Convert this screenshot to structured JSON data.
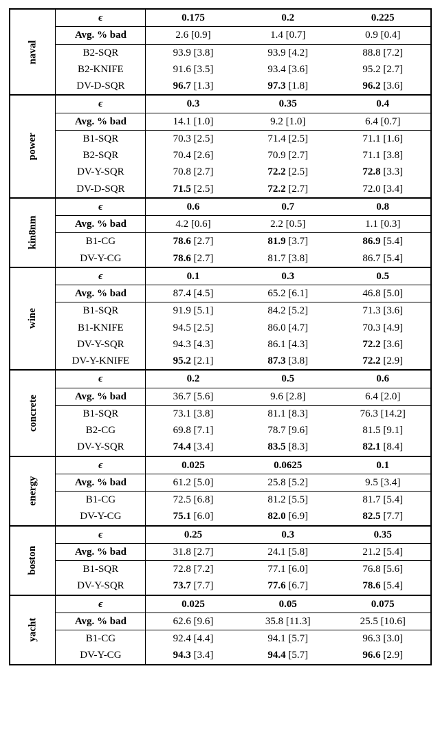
{
  "sections": [
    {
      "dataset": "naval",
      "eps": [
        "0.175",
        "0.2",
        "0.225"
      ],
      "avg_bad": [
        "2.6 [0.9]",
        "1.4 [0.7]",
        "0.9 [0.4]"
      ],
      "rows": [
        {
          "method": "B2-SQR",
          "v": [
            {
              "m": "93.9",
              "e": "[3.8]",
              "b": false
            },
            {
              "m": "93.9",
              "e": "[4.2]",
              "b": false
            },
            {
              "m": "88.8",
              "e": "[7.2]",
              "b": false
            }
          ]
        },
        {
          "method": "B2-KNIFE",
          "v": [
            {
              "m": "91.6",
              "e": "[3.5]",
              "b": false
            },
            {
              "m": "93.4",
              "e": "[3.6]",
              "b": false
            },
            {
              "m": "95.2",
              "e": "[2.7]",
              "b": false
            }
          ]
        },
        {
          "method": "DV-D-SQR",
          "v": [
            {
              "m": "96.7",
              "e": "[1.3]",
              "b": true
            },
            {
              "m": "97.3",
              "e": "[1.8]",
              "b": true
            },
            {
              "m": "96.2",
              "e": "[3.6]",
              "b": true
            }
          ]
        }
      ]
    },
    {
      "dataset": "power",
      "eps": [
        "0.3",
        "0.35",
        "0.4"
      ],
      "avg_bad": [
        "14.1 [1.0]",
        "9.2 [1.0]",
        "6.4 [0.7]"
      ],
      "rows": [
        {
          "method": "B1-SQR",
          "v": [
            {
              "m": "70.3",
              "e": "[2.5]",
              "b": false
            },
            {
              "m": "71.4",
              "e": "[2.5]",
              "b": false
            },
            {
              "m": "71.1",
              "e": "[1.6]",
              "b": false
            }
          ]
        },
        {
          "method": "B2-SQR",
          "v": [
            {
              "m": "70.4",
              "e": "[2.6]",
              "b": false
            },
            {
              "m": "70.9",
              "e": "[2.7]",
              "b": false
            },
            {
              "m": "71.1",
              "e": "[3.8]",
              "b": false
            }
          ]
        },
        {
          "method": "DV-Y-SQR",
          "v": [
            {
              "m": "70.8",
              "e": "[2.7]",
              "b": false
            },
            {
              "m": "72.2",
              "e": "[2.5]",
              "b": true
            },
            {
              "m": "72.8",
              "e": "[3.3]",
              "b": true
            }
          ]
        },
        {
          "method": "DV-D-SQR",
          "v": [
            {
              "m": "71.5",
              "e": "[2.5]",
              "b": true
            },
            {
              "m": "72.2",
              "e": "[2.7]",
              "b": true
            },
            {
              "m": "72.0",
              "e": "[3.4]",
              "b": false
            }
          ]
        }
      ]
    },
    {
      "dataset": "kin8nm",
      "eps": [
        "0.6",
        "0.7",
        "0.8"
      ],
      "avg_bad": [
        "4.2 [0.6]",
        "2.2 [0.5]",
        "1.1 [0.3]"
      ],
      "rows": [
        {
          "method": "B1-CG",
          "v": [
            {
              "m": "78.6",
              "e": "[2.7]",
              "b": true
            },
            {
              "m": "81.9",
              "e": "[3.7]",
              "b": true
            },
            {
              "m": "86.9",
              "e": "[5.4]",
              "b": true
            }
          ]
        },
        {
          "method": "DV-Y-CG",
          "v": [
            {
              "m": "78.6",
              "e": "[2.7]",
              "b": true
            },
            {
              "m": "81.7",
              "e": "[3.8]",
              "b": false
            },
            {
              "m": "86.7",
              "e": "[5.4]",
              "b": false
            }
          ]
        }
      ]
    },
    {
      "dataset": "wine",
      "eps": [
        "0.1",
        "0.3",
        "0.5"
      ],
      "avg_bad": [
        "87.4 [4.5]",
        "65.2 [6.1]",
        "46.8 [5.0]"
      ],
      "rows": [
        {
          "method": "B1-SQR",
          "v": [
            {
              "m": "91.9",
              "e": "[5.1]",
              "b": false
            },
            {
              "m": "84.2",
              "e": "[5.2]",
              "b": false
            },
            {
              "m": "71.3",
              "e": "[3.6]",
              "b": false
            }
          ]
        },
        {
          "method": "B1-KNIFE",
          "v": [
            {
              "m": "94.5",
              "e": "[2.5]",
              "b": false
            },
            {
              "m": "86.0",
              "e": "[4.7]",
              "b": false
            },
            {
              "m": "70.3",
              "e": "[4.9]",
              "b": false
            }
          ]
        },
        {
          "method": "DV-Y-SQR",
          "v": [
            {
              "m": "94.3",
              "e": "[4.3]",
              "b": false
            },
            {
              "m": "86.1",
              "e": "[4.3]",
              "b": false
            },
            {
              "m": "72.2",
              "e": "[3.6]",
              "b": true
            }
          ]
        },
        {
          "method": "DV-Y-KNIFE",
          "v": [
            {
              "m": "95.2",
              "e": "[2.1]",
              "b": true
            },
            {
              "m": "87.3",
              "e": "[3.8]",
              "b": true
            },
            {
              "m": "72.2",
              "e": "[2.9]",
              "b": true
            }
          ]
        }
      ]
    },
    {
      "dataset": "concrete",
      "eps": [
        "0.2",
        "0.5",
        "0.6"
      ],
      "avg_bad": [
        "36.7 [5.6]",
        "9.6 [2.8]",
        "6.4 [2.0]"
      ],
      "rows": [
        {
          "method": "B1-SQR",
          "v": [
            {
              "m": "73.1",
              "e": "[3.8]",
              "b": false
            },
            {
              "m": "81.1",
              "e": "[8.3]",
              "b": false
            },
            {
              "m": "76.3",
              "e": "[14.2]",
              "b": false
            }
          ]
        },
        {
          "method": "B2-CG",
          "v": [
            {
              "m": "69.8",
              "e": "[7.1]",
              "b": false
            },
            {
              "m": "78.7",
              "e": "[9.6]",
              "b": false
            },
            {
              "m": "81.5",
              "e": "[9.1]",
              "b": false
            }
          ]
        },
        {
          "method": "DV-Y-SQR",
          "v": [
            {
              "m": "74.4",
              "e": "[3.4]",
              "b": true
            },
            {
              "m": "83.5",
              "e": "[8.3]",
              "b": true
            },
            {
              "m": "82.1",
              "e": "[8.4]",
              "b": true
            }
          ]
        }
      ]
    },
    {
      "dataset": "energy",
      "eps": [
        "0.025",
        "0.0625",
        "0.1"
      ],
      "avg_bad": [
        "61.2 [5.0]",
        "25.8 [5.2]",
        "9.5 [3.4]"
      ],
      "rows": [
        {
          "method": "B1-CG",
          "v": [
            {
              "m": "72.5",
              "e": "[6.8]",
              "b": false
            },
            {
              "m": "81.2",
              "e": "[5.5]",
              "b": false
            },
            {
              "m": "81.7",
              "e": "[5.4]",
              "b": false
            }
          ]
        },
        {
          "method": "DV-Y-CG",
          "v": [
            {
              "m": "75.1",
              "e": "[6.0]",
              "b": true
            },
            {
              "m": "82.0",
              "e": "[6.9]",
              "b": true
            },
            {
              "m": "82.5",
              "e": "[7.7]",
              "b": true
            }
          ]
        }
      ]
    },
    {
      "dataset": "boston",
      "eps": [
        "0.25",
        "0.3",
        "0.35"
      ],
      "avg_bad": [
        "31.8 [2.7]",
        "24.1 [5.8]",
        "21.2 [5.4]"
      ],
      "rows": [
        {
          "method": "B1-SQR",
          "v": [
            {
              "m": "72.8",
              "e": "[7.2]",
              "b": false
            },
            {
              "m": "77.1",
              "e": "[6.0]",
              "b": false
            },
            {
              "m": "76.8",
              "e": "[5.6]",
              "b": false
            }
          ]
        },
        {
          "method": "DV-Y-SQR",
          "v": [
            {
              "m": "73.7",
              "e": "[7.7]",
              "b": true
            },
            {
              "m": "77.6",
              "e": "[6.7]",
              "b": true
            },
            {
              "m": "78.6",
              "e": "[5.4]",
              "b": true
            }
          ]
        }
      ]
    },
    {
      "dataset": "yacht",
      "eps": [
        "0.025",
        "0.05",
        "0.075"
      ],
      "avg_bad": [
        "62.6 [9.6]",
        "35.8 [11.3]",
        "25.5 [10.6]"
      ],
      "rows": [
        {
          "method": "B1-CG",
          "v": [
            {
              "m": "92.4",
              "e": "[4.4]",
              "b": false
            },
            {
              "m": "94.1",
              "e": "[5.7]",
              "b": false
            },
            {
              "m": "96.3",
              "e": "[3.0]",
              "b": false
            }
          ]
        },
        {
          "method": "DV-Y-CG",
          "v": [
            {
              "m": "94.3",
              "e": "[3.4]",
              "b": true
            },
            {
              "m": "94.4",
              "e": "[5.7]",
              "b": true
            },
            {
              "m": "96.6",
              "e": "[2.9]",
              "b": true
            }
          ]
        }
      ]
    }
  ],
  "labels": {
    "eps": "ϵ",
    "avg_bad": "Avg. % bad"
  }
}
